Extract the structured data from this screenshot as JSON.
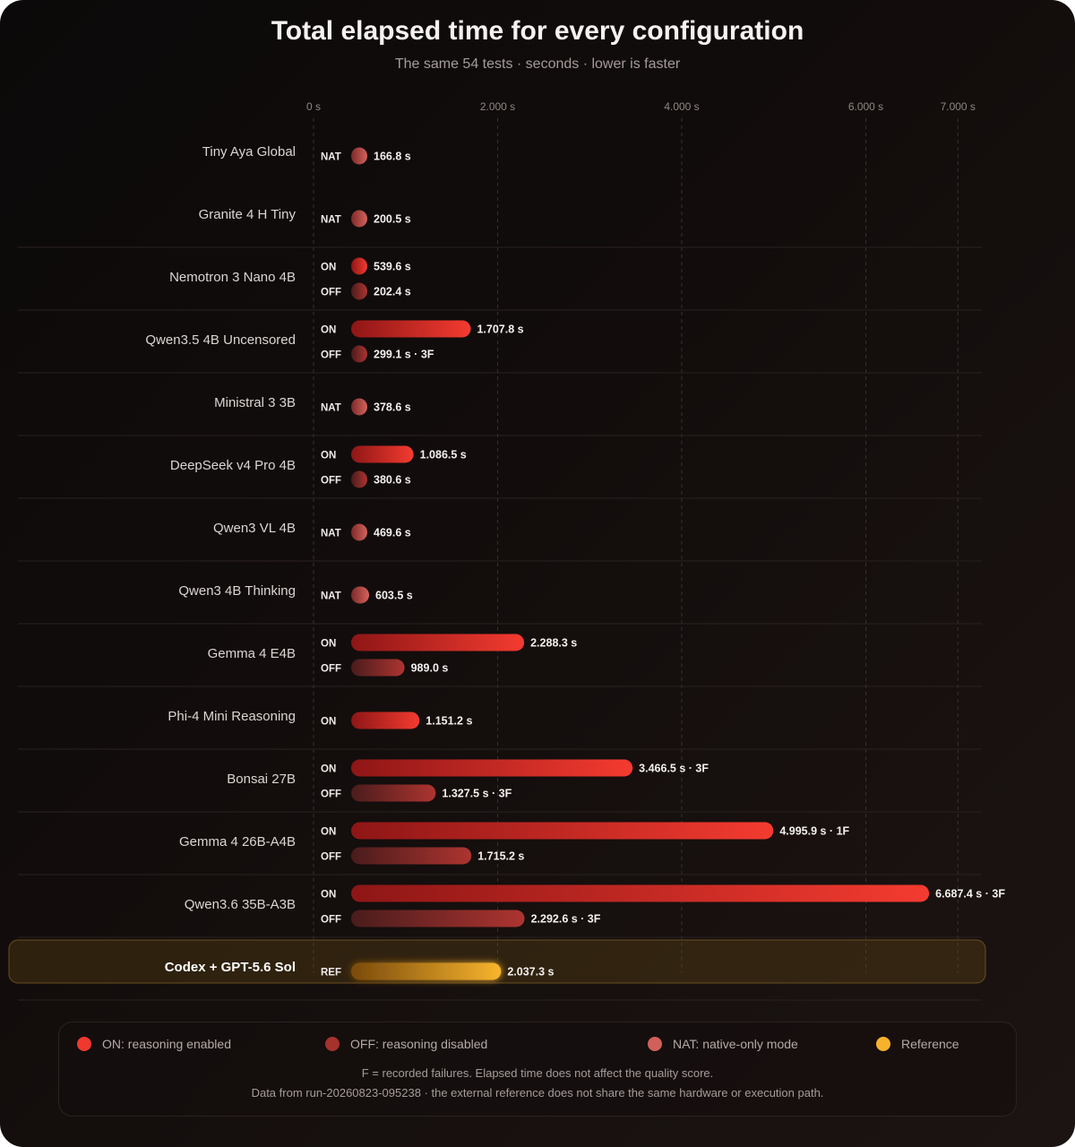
{
  "chart": {
    "title": "Total elapsed time for every configuration",
    "subtitle": "The same 54 tests · seconds · lower is faster"
  },
  "chart_data": {
    "type": "bar",
    "orientation": "horizontal",
    "xlim": [
      0,
      7000
    ],
    "ticks": [
      {
        "value": 0,
        "label": "0 s"
      },
      {
        "value": 2000,
        "label": "2.000 s"
      },
      {
        "value": 4000,
        "label": "4.000 s"
      },
      {
        "value": 6000,
        "label": "6.000 s"
      },
      {
        "value": 7000,
        "label": "7.000 s"
      }
    ],
    "groups": [
      {
        "name": "Tiny Aya Global",
        "bars": [
          {
            "mode": "NAT",
            "value": 166.8,
            "label": "166.8 s"
          }
        ]
      },
      {
        "name": "Granite 4 H Tiny",
        "bars": [
          {
            "mode": "NAT",
            "value": 200.5,
            "label": "200.5 s"
          }
        ]
      },
      {
        "name": "Nemotron 3 Nano 4B",
        "bars": [
          {
            "mode": "ON",
            "value": 539.6,
            "label": "539.6 s"
          },
          {
            "mode": "OFF",
            "value": 202.4,
            "label": "202.4 s"
          }
        ]
      },
      {
        "name": "Qwen3.5 4B Uncensored",
        "bars": [
          {
            "mode": "ON",
            "value": 1707.8,
            "label": "1.707.8 s"
          },
          {
            "mode": "OFF",
            "value": 299.1,
            "label": "299.1 s · 3F"
          }
        ]
      },
      {
        "name": "Ministral 3 3B",
        "bars": [
          {
            "mode": "NAT",
            "value": 378.6,
            "label": "378.6 s"
          }
        ]
      },
      {
        "name": "DeepSeek v4 Pro 4B",
        "bars": [
          {
            "mode": "ON",
            "value": 1086.5,
            "label": "1.086.5 s"
          },
          {
            "mode": "OFF",
            "value": 380.6,
            "label": "380.6 s"
          }
        ]
      },
      {
        "name": "Qwen3 VL 4B",
        "bars": [
          {
            "mode": "NAT",
            "value": 469.6,
            "label": "469.6 s"
          }
        ]
      },
      {
        "name": "Qwen3 4B Thinking",
        "bars": [
          {
            "mode": "NAT",
            "value": 603.5,
            "label": "603.5 s"
          }
        ]
      },
      {
        "name": "Gemma 4 E4B",
        "bars": [
          {
            "mode": "ON",
            "value": 2288.3,
            "label": "2.288.3 s"
          },
          {
            "mode": "OFF",
            "value": 989.0,
            "label": "989.0 s"
          }
        ]
      },
      {
        "name": "Phi-4 Mini Reasoning",
        "bars": [
          {
            "mode": "ON",
            "value": 1151.2,
            "label": "1.151.2 s"
          }
        ]
      },
      {
        "name": "Bonsai 27B",
        "bars": [
          {
            "mode": "ON",
            "value": 3466.5,
            "label": "3.466.5 s · 3F"
          },
          {
            "mode": "OFF",
            "value": 1327.5,
            "label": "1.327.5 s · 3F"
          }
        ]
      },
      {
        "name": "Gemma 4 26B-A4B",
        "bars": [
          {
            "mode": "ON",
            "value": 4995.9,
            "label": "4.995.9 s · 1F"
          },
          {
            "mode": "OFF",
            "value": 1715.2,
            "label": "1.715.2 s"
          }
        ]
      },
      {
        "name": "Qwen3.6 35B-A3B",
        "bars": [
          {
            "mode": "ON",
            "value": 6687.4,
            "label": "6.687.4 s · 3F"
          },
          {
            "mode": "OFF",
            "value": 2292.6,
            "label": "2.292.6 s · 3F"
          }
        ]
      },
      {
        "name": "Codex + GPT-5.6 Sol",
        "reference": true,
        "bars": [
          {
            "mode": "REF",
            "value": 2037.3,
            "label": "2.037.3 s"
          }
        ]
      }
    ],
    "colors": {
      "ON": "#f0392e",
      "OFF": "#a5322d",
      "NAT": "#d2605a",
      "REF": "#f6b22c"
    }
  },
  "legend": {
    "items": [
      {
        "key": "ON",
        "label": "ON: reasoning enabled",
        "color": "#f0392e"
      },
      {
        "key": "OFF",
        "label": "OFF: reasoning disabled",
        "color": "#a5322d"
      },
      {
        "key": "NAT",
        "label": "NAT: native-only mode",
        "color": "#d2605a"
      },
      {
        "key": "REF",
        "label": "Reference",
        "color": "#f6b22c"
      }
    ],
    "note1": "F = recorded failures. Elapsed time does not affect the quality score.",
    "note2": "Data from run-20260823-095238 · the external reference does not share the same hardware or execution path."
  }
}
